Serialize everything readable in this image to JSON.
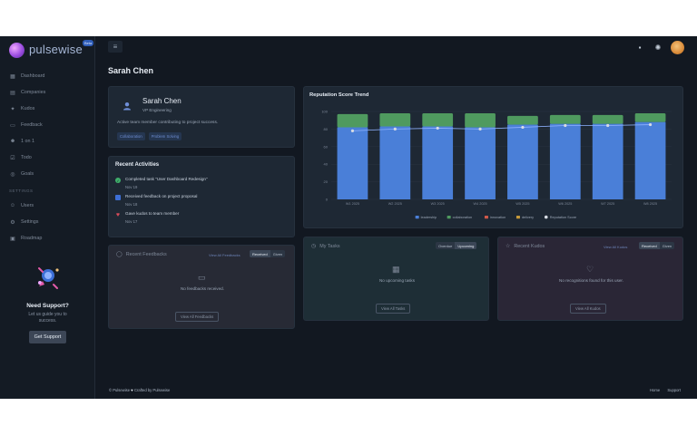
{
  "app": {
    "name": "pulsewise",
    "badge": "Beta"
  },
  "sidebar": {
    "items": [
      {
        "label": "Dashboard",
        "icon": "grid-icon"
      },
      {
        "label": "Companies",
        "icon": "building-icon"
      },
      {
        "label": "Kudos",
        "icon": "star-icon"
      },
      {
        "label": "Feedback",
        "icon": "chat-icon"
      },
      {
        "label": "1 on 1",
        "icon": "users-icon"
      },
      {
        "label": "Todo",
        "icon": "check-icon"
      },
      {
        "label": "Goals",
        "icon": "target-icon"
      }
    ],
    "section_settings": "SETTINGS",
    "settings_items": [
      {
        "label": "Users",
        "icon": "user-icon"
      },
      {
        "label": "Settings",
        "icon": "gear-icon"
      },
      {
        "label": "Roadmap",
        "icon": "map-icon"
      }
    ],
    "support": {
      "title": "Need Support?",
      "subtitle_line1": "Let us guide you to",
      "subtitle_line2": "success.",
      "button": "Get Support"
    }
  },
  "page": {
    "title": "Sarah Chen"
  },
  "profile": {
    "name": "Sarah Chen",
    "role": "VP Engineering",
    "bio": "Active team member contributing to project success.",
    "tags": [
      "Collaboration",
      "Problem Solving"
    ]
  },
  "activities": {
    "title": "Recent Activities",
    "items": [
      {
        "text": "Completed task \"User Dashboard Redesign\"",
        "date": "Nov 19",
        "color": "#3fae6b",
        "icon": "check-icon"
      },
      {
        "text": "Received feedback on project proposal",
        "date": "Nov 18",
        "color": "#3d6fd6",
        "icon": "chat-icon"
      },
      {
        "text": "Gave kudos to team member",
        "date": "Nov 17",
        "color": "#d94b5a",
        "icon": "heart-icon"
      }
    ]
  },
  "chart_data": {
    "type": "bar",
    "title": "Reputation Score Trend",
    "categories": [
      "W1 2025",
      "W2 2025",
      "W3 2025",
      "W4 2025",
      "W5 2025",
      "W6 2025",
      "W7 2025",
      "W8 2025"
    ],
    "series": [
      {
        "name": "leadership",
        "color": "#4a7fd8",
        "values": [
          82,
          83,
          83,
          82,
          85,
          86,
          86,
          88
        ]
      },
      {
        "name": "collaboration",
        "color": "#4f9a5f",
        "values": [
          15,
          15,
          15,
          16,
          10,
          10,
          10,
          10
        ]
      },
      {
        "name": "innovation",
        "color": "#d0594a",
        "values": [
          0,
          0,
          0,
          0,
          0,
          0,
          0,
          0
        ]
      },
      {
        "name": "delivery",
        "color": "#c79a3a",
        "values": [
          0,
          0,
          0,
          0,
          0,
          0,
          0,
          0
        ]
      }
    ],
    "line": {
      "name": "Reputation Score",
      "color": "#d6dbe3",
      "values": [
        78,
        80,
        81,
        80,
        82,
        84,
        84,
        85
      ]
    },
    "ylim": [
      0,
      100
    ],
    "yticks": [
      0,
      20,
      40,
      60,
      80,
      100
    ],
    "legend": "bottom",
    "stacked": true
  },
  "feedbacks": {
    "title": "Recent Feedbacks",
    "view_all": "View All Feedbacks",
    "toggle": [
      "Received",
      "Given"
    ],
    "active": "Received",
    "empty": "No feedbacks received.",
    "button": "View All Feedbacks"
  },
  "tasks": {
    "title": "My Tasks",
    "toggle": [
      "Overdue",
      "Upcoming"
    ],
    "active": "Upcoming",
    "empty": "No upcoming tasks",
    "button": "View All Tasks"
  },
  "kudos": {
    "title": "Recent Kudos",
    "view_all": "View All Kudos",
    "toggle": [
      "Received",
      "Given"
    ],
    "active": "Received",
    "empty": "No recognitions found for this user.",
    "button": "View All Kudos"
  },
  "footer": {
    "left": "© Pulsewise",
    "left_suffix": "Crafted by Pulsewise",
    "links": [
      "Home",
      "Support"
    ]
  }
}
